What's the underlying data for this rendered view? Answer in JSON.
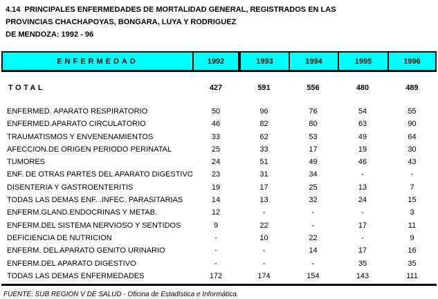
{
  "title": {
    "line1": "4.14  PRINCIPALES ENFERMEDADES DE MORTALIDAD GENERAL, REGISTRADOS EN LAS",
    "line2": "PROVINCIAS CHACHAPOYAS, BONGARA, LUYA Y RODRIGUEZ",
    "line3": "DE MENDOZA: 1992 - 96"
  },
  "colors": {
    "header_background": "#00FFFF",
    "border": "#000000",
    "page_background": "#FFFFFF"
  },
  "table": {
    "header": {
      "disease_col": "ENFERMEDAD",
      "years": [
        "1992",
        "1993",
        "1994",
        "1995",
        "1996"
      ]
    },
    "total": {
      "label": "TOTAL",
      "values": [
        "427",
        "591",
        "556",
        "480",
        "489"
      ]
    },
    "rows": [
      {
        "label": "ENFERMED. APARATO RESPIRATORIO",
        "values": [
          "50",
          "96",
          "76",
          "54",
          "55"
        ]
      },
      {
        "label": "ENFERMED.APARATO CIRCULATORIO",
        "values": [
          "46",
          "82",
          "80",
          "63",
          "90"
        ]
      },
      {
        "label": "TRAUMATISMOS Y ENVENENAMIENTOS",
        "values": [
          "33",
          "62",
          "53",
          "49",
          "64"
        ]
      },
      {
        "label": "AFECCION.DE ORIGEN PERIODO PERINATAL",
        "values": [
          "25",
          "33",
          "17",
          "19",
          "30"
        ]
      },
      {
        "label": "TUMORES",
        "values": [
          "24",
          "51",
          "49",
          "46",
          "43"
        ]
      },
      {
        "label": "ENF. DE OTRAS PARTES DEL APARATO DIGESTIVO",
        "values": [
          "23",
          "31",
          "34",
          "-",
          "-"
        ]
      },
      {
        "label": "DISENTERIA Y GASTROENTERITIS",
        "values": [
          "19",
          "17",
          "25",
          "13",
          "7"
        ]
      },
      {
        "label": "TODAS LAS DEMAS ENF. .INFEC. PARASITARIAS",
        "values": [
          "14",
          "13",
          "32",
          "24",
          "15"
        ]
      },
      {
        "label": "ENFERM.GLAND.ENDOCRINAS Y METAB.",
        "values": [
          "12",
          "-",
          "-",
          "-",
          "3"
        ]
      },
      {
        "label": "ENFERM.DEL SISTEMA NERVIOSO Y SENTIDOS",
        "values": [
          "9",
          "22",
          "-",
          "17",
          "11"
        ]
      },
      {
        "label": "DEFICIENCIA DE NUTRICION",
        "values": [
          "-",
          "10",
          "22",
          "-",
          "9"
        ]
      },
      {
        "label": "ENFERM. DEL APARATO GENITO URINARIO",
        "values": [
          "-",
          "-",
          "14",
          "17",
          "16"
        ]
      },
      {
        "label": "ENFERM.DEL APARATO DIGESTIVO",
        "values": [
          "-",
          "-",
          "-",
          "35",
          "35"
        ]
      },
      {
        "label": "TODAS LAS DEMAS ENFERMEDADES",
        "values": [
          "172",
          "174",
          "154",
          "143",
          "111"
        ]
      }
    ]
  },
  "footer": {
    "text": "FUENTE: SUB REGION V DE SALUD - Oficina de Estadística e Informática."
  }
}
